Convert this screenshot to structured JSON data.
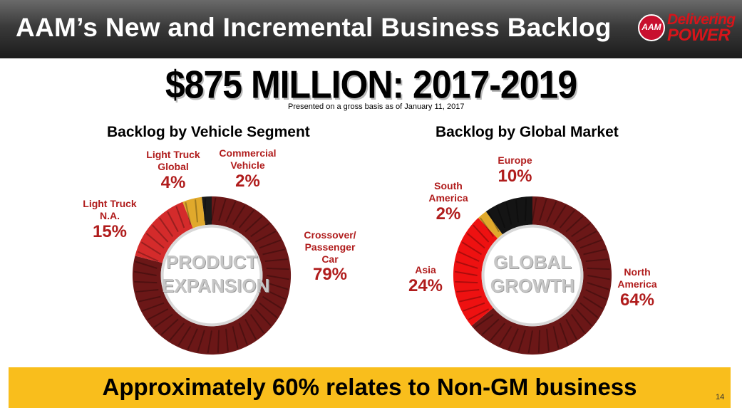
{
  "header": {
    "title": "AAM’s New and Incremental Business Backlog",
    "logo": {
      "badge": "AAM",
      "line1": "Delivering",
      "line2": "POWER"
    }
  },
  "headline": "$875 MILLION: 2017-2019",
  "subnote": "Presented on a gross basis as of January 11, 2017",
  "chart_data": [
    {
      "type": "pie",
      "title": "Backlog by Vehicle Segment",
      "center_label": [
        "PRODUCT",
        "EXPANSION"
      ],
      "slices": [
        {
          "name": "Crossover/ Passenger Car",
          "value": 79,
          "label": "79%",
          "color": "#6b1717"
        },
        {
          "name": "Light Truck N.A.",
          "value": 15,
          "label": "15%",
          "color": "#d42b2b"
        },
        {
          "name": "Light Truck Global",
          "value": 4,
          "label": "4%",
          "color": "#e0a92c"
        },
        {
          "name": "Commercial Vehicle",
          "value": 2,
          "label": "2%",
          "color": "#1b1b1b"
        }
      ]
    },
    {
      "type": "pie",
      "title": "Backlog by Global Market",
      "center_label": [
        "GLOBAL",
        "GROWTH"
      ],
      "slices": [
        {
          "name": "North America",
          "value": 64,
          "label": "64%",
          "color": "#6b1717"
        },
        {
          "name": "Asia",
          "value": 24,
          "label": "24%",
          "color": "#ee1111"
        },
        {
          "name": "South America",
          "value": 2,
          "label": "2%",
          "color": "#e0a92c"
        },
        {
          "name": "Europe",
          "value": 10,
          "label": "10%",
          "color": "#141414"
        }
      ]
    }
  ],
  "labels": {
    "segment": {
      "light_truck_global": {
        "l1": "Light Truck",
        "l2": "Global",
        "pct": "4%"
      },
      "commercial_vehicle": {
        "l1": "Commercial",
        "l2": "Vehicle",
        "pct": "2%"
      },
      "light_truck_na": {
        "l1": "Light Truck",
        "l2": "N.A.",
        "pct": "15%"
      },
      "crossover": {
        "l1": "Crossover/",
        "l2": "Passenger",
        "l3": "Car",
        "pct": "79%"
      }
    },
    "market": {
      "europe": {
        "l1": "Europe",
        "pct": "10%"
      },
      "south_america": {
        "l1": "South",
        "l2": "America",
        "pct": "2%"
      },
      "asia": {
        "l1": "Asia",
        "pct": "24%"
      },
      "north_america": {
        "l1": "North",
        "l2": "America",
        "pct": "64%"
      }
    }
  },
  "footer": {
    "text": "Approximately 60% relates to Non-GM business"
  },
  "page_number": "14"
}
